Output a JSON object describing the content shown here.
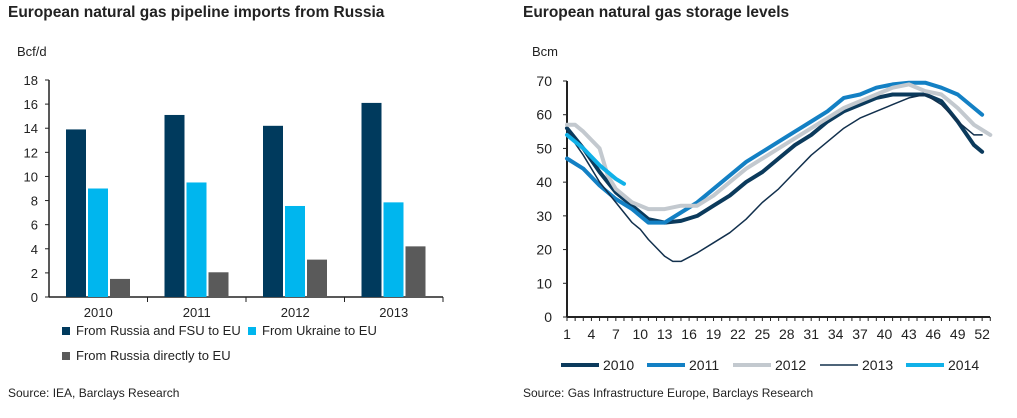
{
  "chart_data": [
    {
      "type": "bar",
      "title": "European natural gas pipeline imports from Russia",
      "ylabel": "Bcf/d",
      "ylim": [
        0,
        18
      ],
      "yticks": [
        0,
        2,
        4,
        6,
        8,
        10,
        12,
        14,
        16,
        18
      ],
      "categories": [
        "2010",
        "2011",
        "2012",
        "2013"
      ],
      "series": [
        {
          "name": "From Russia and FSU to EU",
          "color": "#003a5d",
          "values": [
            13.9,
            15.1,
            14.2,
            16.1
          ]
        },
        {
          "name": "From Ukraine to EU",
          "color": "#00b6ee",
          "values": [
            9.0,
            9.5,
            7.55,
            7.85
          ]
        },
        {
          "name": "From Russia directly to EU",
          "color": "#5a5a5a",
          "values": [
            1.5,
            2.05,
            3.1,
            4.2
          ]
        }
      ],
      "legend": "bottom",
      "source": "Source: IEA, Barclays Research"
    },
    {
      "type": "line",
      "title": "European natural gas storage levels",
      "ylabel": "Bcm",
      "ylim": [
        0,
        70
      ],
      "yticks": [
        0,
        10,
        20,
        30,
        40,
        50,
        60,
        70
      ],
      "xlim": [
        1,
        53
      ],
      "xticks": [
        1,
        4,
        7,
        10,
        13,
        16,
        19,
        22,
        25,
        28,
        31,
        34,
        37,
        40,
        43,
        46,
        49,
        52
      ],
      "series": [
        {
          "name": "2010",
          "color": "#0b3a5c",
          "width": 4,
          "x": [
            1,
            3,
            5,
            7,
            9,
            11,
            13,
            15,
            17,
            19,
            21,
            23,
            25,
            27,
            29,
            31,
            33,
            35,
            37,
            39,
            41,
            43,
            45,
            47,
            49,
            51,
            52
          ],
          "y": [
            56,
            50,
            43,
            37,
            33,
            29,
            28,
            28.5,
            30,
            33,
            36,
            40,
            43,
            47,
            51,
            54,
            58,
            61,
            63,
            65,
            66,
            66,
            66,
            64,
            58,
            51,
            49
          ]
        },
        {
          "name": "2011",
          "color": "#1380c4",
          "width": 4,
          "x": [
            1,
            3,
            5,
            7,
            9,
            11,
            13,
            15,
            17,
            19,
            21,
            23,
            25,
            27,
            29,
            31,
            33,
            35,
            37,
            39,
            41,
            43,
            45,
            47,
            49,
            51,
            52
          ],
          "y": [
            47,
            44,
            39,
            35,
            32,
            28,
            28,
            31,
            34,
            38,
            42,
            46,
            49,
            52,
            55,
            58,
            61,
            65,
            66,
            68,
            69,
            69.5,
            69.5,
            68,
            66,
            62,
            60
          ]
        },
        {
          "name": "2012",
          "color": "#c3c9cf",
          "width": 4,
          "x": [
            1,
            2,
            3,
            5,
            6,
            7,
            9,
            11,
            13,
            15,
            17,
            19,
            21,
            23,
            25,
            27,
            29,
            31,
            33,
            35,
            37,
            39,
            41,
            43,
            45,
            47,
            49,
            51,
            53
          ],
          "y": [
            57,
            57,
            55,
            50,
            42,
            38,
            34,
            32,
            32,
            33,
            33,
            36,
            40,
            44,
            47,
            50,
            53,
            56,
            59,
            62,
            64,
            66,
            68,
            69,
            67,
            66,
            62,
            57,
            54
          ]
        },
        {
          "name": "2013",
          "color": "#12304d",
          "width": 1.5,
          "x": [
            1,
            3,
            5,
            7,
            9,
            10,
            11,
            13,
            14,
            15,
            17,
            19,
            21,
            23,
            25,
            27,
            29,
            31,
            33,
            35,
            37,
            39,
            41,
            43,
            45,
            47,
            49,
            51,
            52
          ],
          "y": [
            55,
            48,
            40,
            34,
            28,
            26,
            23,
            18,
            16.5,
            16.5,
            19,
            22,
            25,
            29,
            34,
            38,
            43,
            48,
            52,
            56,
            59,
            61,
            63,
            65,
            66,
            63,
            58,
            54,
            54
          ]
        },
        {
          "name": "2014",
          "color": "#11b1e8",
          "width": 4,
          "x": [
            1,
            3,
            5,
            7,
            8
          ],
          "y": [
            54,
            50,
            45,
            41,
            39.5
          ]
        }
      ],
      "legend": "bottom",
      "source": "Source: Gas Infrastructure Europe, Barclays Research"
    }
  ]
}
